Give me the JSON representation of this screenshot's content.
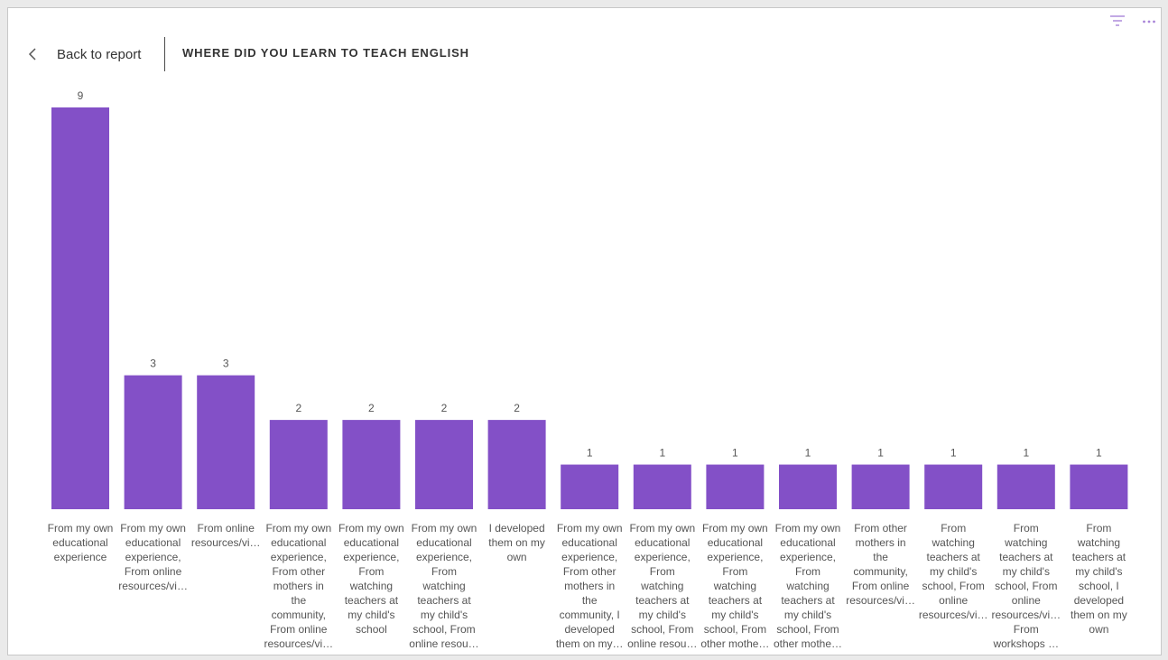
{
  "header": {
    "back_label": "Back to report",
    "title": "WHERE DID YOU LEARN TO TEACH ENGLISH"
  },
  "icons": {
    "back": "chevron-left-icon",
    "filter": "filter-icon",
    "more": "more-options-icon"
  },
  "colors": {
    "bar": "#8350c7",
    "icon_accent": "#a884d8"
  },
  "chart_data": {
    "type": "bar",
    "title": "WHERE DID YOU LEARN TO TEACH ENGLISH",
    "categories": [
      "From my own educational experience",
      "From my own educational experience, From online resources/vi…",
      "From online resources/vi…",
      "From my own educational experience, From other mothers in the community, From online resources/vi…",
      "From my own educational experience, From watching teachers at my child's school",
      "From my own educational experience, From watching teachers at my child's school, From online resou…",
      "I developed them on my own",
      "From my own educational experience, From other mothers in the community, I developed them on my…",
      "From my own educational experience, From watching teachers at my child's school, From online resou…",
      "From my own educational experience, From watching teachers at my child's school, From other mothe…",
      "From my own educational experience, From watching teachers at my child's school, From other mothe…",
      "From other mothers in the community, From online resources/vi…",
      "From watching teachers at my child's school, From online resources/vi…",
      "From watching teachers at my child's school, From online resources/vi… From workshops …",
      "From watching teachers at my child's school, I developed them on my own"
    ],
    "category_lines": [
      [
        "From my own",
        "educational",
        "experience"
      ],
      [
        "From my own",
        "educational",
        "experience,",
        "From online",
        "resources/vi…"
      ],
      [
        "From online",
        "resources/vi…"
      ],
      [
        "From my own",
        "educational",
        "experience,",
        "From other",
        "mothers in",
        "the",
        "community,",
        "From online",
        "resources/vi…"
      ],
      [
        "From my own",
        "educational",
        "experience,",
        "From",
        "watching",
        "teachers at",
        "my child's",
        "school"
      ],
      [
        "From my own",
        "educational",
        "experience,",
        "From",
        "watching",
        "teachers at",
        "my child's",
        "school, From",
        "online resou…"
      ],
      [
        "I developed",
        "them on my",
        "own"
      ],
      [
        "From my own",
        "educational",
        "experience,",
        "From other",
        "mothers in",
        "the",
        "community, I",
        "developed",
        "them on my…"
      ],
      [
        "From my own",
        "educational",
        "experience,",
        "From",
        "watching",
        "teachers at",
        "my child's",
        "school, From",
        "online resou…"
      ],
      [
        "From my own",
        "educational",
        "experience,",
        "From",
        "watching",
        "teachers at",
        "my child's",
        "school, From",
        "other mothe…"
      ],
      [
        "From my own",
        "educational",
        "experience,",
        "From",
        "watching",
        "teachers at",
        "my child's",
        "school, From",
        "other mothe…"
      ],
      [
        "From other",
        "mothers in",
        "the",
        "community,",
        "From online",
        "resources/vi…"
      ],
      [
        "From",
        "watching",
        "teachers at",
        "my child's",
        "school, From",
        "online",
        "resources/vi…"
      ],
      [
        "From",
        "watching",
        "teachers at",
        "my child's",
        "school, From",
        "online",
        "resources/vi…",
        "From",
        "workshops …"
      ],
      [
        "From",
        "watching",
        "teachers at",
        "my child's",
        "school, I",
        "developed",
        "them on my",
        "own"
      ]
    ],
    "values": [
      9,
      3,
      3,
      2,
      2,
      2,
      2,
      1,
      1,
      1,
      1,
      1,
      1,
      1,
      1
    ],
    "ylim": [
      0,
      9
    ],
    "grid": false,
    "data_labels": true
  }
}
